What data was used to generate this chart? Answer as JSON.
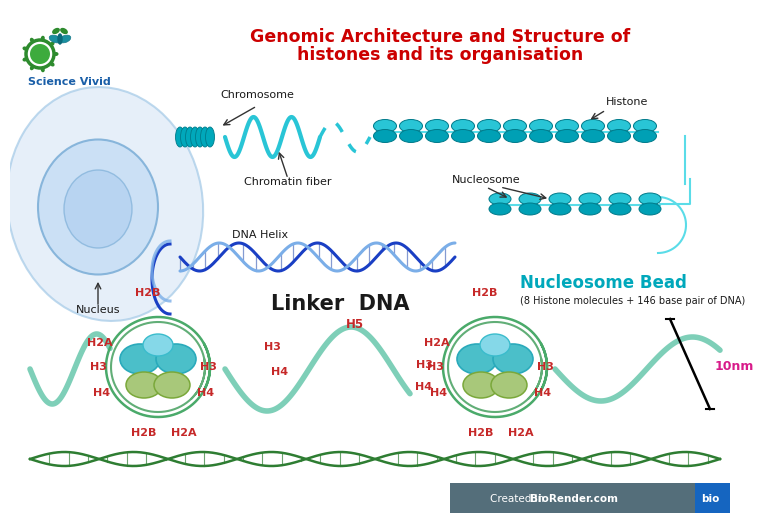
{
  "title_line1": "Genomic Architecture and Structure of",
  "title_line2": "histones and its organisation",
  "title_color": "#cc0000",
  "background_color": "#ffffff",
  "fig_width": 7.2,
  "fig_height": 5.04,
  "labels": {
    "chromosome": "Chromosome",
    "nucleus": "Nucleus",
    "chromatin_fiber": "Chromatin fiber",
    "histone": "Histone",
    "nucleosome": "Nucleosome",
    "dna_helix": "DNA Helix",
    "linker_dna": "Linker  DNA",
    "nucleosome_bead": "Nucleosome Bead",
    "nucleosome_desc": "(8 Histone molecules + 146 base pair of DNA)",
    "h2a": "H2A",
    "h2b": "H2B",
    "h3": "H3",
    "h4": "H4",
    "h5": "H5",
    "10nm": "10nm",
    "science_vivid": "Science Vivid",
    "biorendertext": "Created in ",
    "biorender": "BioRender.com",
    "bio": "bio"
  },
  "colors": {
    "cyan_light": "#29c5d6",
    "cyan_medium": "#00a8bb",
    "cyan_dark": "#007a8a",
    "teal_green": "#4caf50",
    "olive_green": "#9cbe5a",
    "dark_olive": "#7aa83a",
    "dark_green": "#2e7d32",
    "light_teal": "#6ecfcb",
    "dna_wrap_green": "#4aaa6a",
    "nucleus_fill": "#c8dff5",
    "nucleus_border": "#7fb0d8",
    "cell_fill": "#deeaf7",
    "cell_border": "#a8cce8",
    "label_red": "#c62828",
    "label_black": "#1a1a1a",
    "arrow_color": "#333333",
    "dna_blue": "#1a3fc4",
    "dna_strand2": "#7baee8",
    "histone_bead1": "#29c5d6",
    "histone_bead2": "#00a0b5",
    "science_vivid_color": "#1a5fa8",
    "magenta": "#d81b8a",
    "gray_footer": "#546e7a",
    "bio_blue": "#1565c0",
    "h3_color": "#4bbfc9",
    "h4_color": "#a8c87a",
    "h2ab_color": "#7ecfb8",
    "linker_color": "#7ecfb8"
  }
}
